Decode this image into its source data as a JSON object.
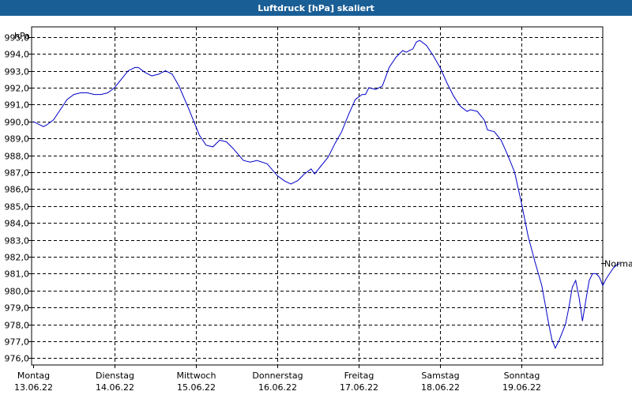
{
  "window": {
    "title": "Luftdruck [hPa] skaliert"
  },
  "colors": {
    "titlebar": "#1a5e96",
    "series": "#0000c8",
    "grid": "#000000"
  },
  "chart_data": {
    "type": "line",
    "title": "Luftdruck [hPa] skaliert",
    "ylabel": "hPa",
    "ylim": [
      975.6,
      995.6
    ],
    "yticks": [
      976,
      977,
      978,
      979,
      980,
      981,
      982,
      983,
      984,
      985,
      986,
      987,
      988,
      989,
      990,
      991,
      992,
      993,
      994,
      995
    ],
    "ytick_labels": [
      "976,0",
      "977,0",
      "978,0",
      "979,0",
      "980,0",
      "981,0",
      "982,0",
      "983,0",
      "984,0",
      "985,0",
      "986,0",
      "987,0",
      "988,0",
      "989,0",
      "990,0",
      "991,0",
      "992,0",
      "993,0",
      "994,0",
      "995,0"
    ],
    "x_axis": {
      "start": "13.06.22 00:00",
      "days": 7,
      "day_labels": [
        {
          "weekday": "Montag",
          "date": "13.06.22"
        },
        {
          "weekday": "Dienstag",
          "date": "14.06.22"
        },
        {
          "weekday": "Mittwoch",
          "date": "15.06.22"
        },
        {
          "weekday": "Donnerstag",
          "date": "16.06.22"
        },
        {
          "weekday": "Freitag",
          "date": "17.06.22"
        },
        {
          "weekday": "Samstag",
          "date": "18.06.22"
        },
        {
          "weekday": "Sonntag",
          "date": "19.06.22"
        }
      ]
    },
    "grid": true,
    "series": [
      {
        "marker_label": "Normal",
        "points": [
          [
            "13.06.22 00:00",
            990.0
          ],
          [
            "13.06.22 02:00",
            989.8
          ],
          [
            "13.06.22 03:00",
            989.7
          ],
          [
            "13.06.22 04:00",
            989.8
          ],
          [
            "13.06.22 06:00",
            990.1
          ],
          [
            "13.06.22 08:00",
            990.7
          ],
          [
            "13.06.22 10:00",
            991.3
          ],
          [
            "13.06.22 12:00",
            991.6
          ],
          [
            "13.06.22 14:00",
            991.7
          ],
          [
            "13.06.22 16:00",
            991.7
          ],
          [
            "13.06.22 18:00",
            991.6
          ],
          [
            "13.06.22 20:00",
            991.6
          ],
          [
            "13.06.22 22:00",
            991.7
          ],
          [
            "14.06.22 00:00",
            992.0
          ],
          [
            "14.06.22 02:00",
            992.5
          ],
          [
            "14.06.22 04:00",
            993.0
          ],
          [
            "14.06.22 06:00",
            993.2
          ],
          [
            "14.06.22 07:00",
            993.2
          ],
          [
            "14.06.22 09:00",
            992.9
          ],
          [
            "14.06.22 11:00",
            992.7
          ],
          [
            "14.06.22 13:00",
            992.8
          ],
          [
            "14.06.22 15:00",
            993.0
          ],
          [
            "14.06.22 17:00",
            992.8
          ],
          [
            "14.06.22 19:00",
            992.1
          ],
          [
            "14.06.22 22:00",
            990.7
          ],
          [
            "15.06.22 01:00",
            989.2
          ],
          [
            "15.06.22 03:00",
            988.6
          ],
          [
            "15.06.22 05:00",
            988.5
          ],
          [
            "15.06.22 07:00",
            988.9
          ],
          [
            "15.06.22 09:00",
            988.8
          ],
          [
            "15.06.22 11:00",
            988.4
          ],
          [
            "15.06.22 14:00",
            987.7
          ],
          [
            "15.06.22 16:00",
            987.6
          ],
          [
            "15.06.22 18:00",
            987.7
          ],
          [
            "15.06.22 21:00",
            987.5
          ],
          [
            "16.06.22 00:00",
            986.8
          ],
          [
            "16.06.22 02:00",
            986.5
          ],
          [
            "16.06.22 04:00",
            986.3
          ],
          [
            "16.06.22 06:00",
            986.5
          ],
          [
            "16.06.22 08:00",
            986.9
          ],
          [
            "16.06.22 10:00",
            987.2
          ],
          [
            "16.06.22 11:00",
            986.9
          ],
          [
            "16.06.22 13:00",
            987.4
          ],
          [
            "16.06.22 15:00",
            987.9
          ],
          [
            "16.06.22 17:00",
            988.7
          ],
          [
            "16.06.22 19:00",
            989.4
          ],
          [
            "16.06.22 21:00",
            990.4
          ],
          [
            "16.06.22 23:00",
            991.3
          ],
          [
            "17.06.22 01:00",
            991.6
          ],
          [
            "17.06.22 02:00",
            991.6
          ],
          [
            "17.06.22 03:00",
            992.0
          ],
          [
            "17.06.22 05:00",
            991.9
          ],
          [
            "17.06.22 07:00",
            992.1
          ],
          [
            "17.06.22 09:00",
            993.2
          ],
          [
            "17.06.22 11:00",
            993.8
          ],
          [
            "17.06.22 13:00",
            994.2
          ],
          [
            "17.06.22 14:00",
            994.1
          ],
          [
            "17.06.22 16:00",
            994.3
          ],
          [
            "17.06.22 17:00",
            994.7
          ],
          [
            "17.06.22 18:00",
            994.8
          ],
          [
            "17.06.22 20:00",
            994.5
          ],
          [
            "17.06.22 22:00",
            993.9
          ],
          [
            "18.06.22 00:00",
            993.2
          ],
          [
            "18.06.22 02:00",
            992.3
          ],
          [
            "18.06.22 04:00",
            991.5
          ],
          [
            "18.06.22 06:00",
            990.9
          ],
          [
            "18.06.22 08:00",
            990.6
          ],
          [
            "18.06.22 09:00",
            990.7
          ],
          [
            "18.06.22 11:00",
            990.6
          ],
          [
            "18.06.22 13:00",
            990.1
          ],
          [
            "18.06.22 14:00",
            989.5
          ],
          [
            "18.06.22 16:00",
            989.4
          ],
          [
            "18.06.22 18:00",
            988.9
          ],
          [
            "18.06.22 20:00",
            988.0
          ],
          [
            "18.06.22 22:00",
            987.0
          ],
          [
            "19.06.22 00:00",
            985.2
          ],
          [
            "19.06.22 02:00",
            983.2
          ],
          [
            "19.06.22 04:00",
            981.7
          ],
          [
            "19.06.22 06:00",
            980.3
          ],
          [
            "19.06.22 08:00",
            978.1
          ],
          [
            "19.06.22 09:00",
            977.1
          ],
          [
            "19.06.22 10:00",
            976.6
          ],
          [
            "19.06.22 11:00",
            977.0
          ],
          [
            "19.06.22 13:00",
            978.0
          ],
          [
            "19.06.22 14:00",
            979.0
          ],
          [
            "19.06.22 15:00",
            980.2
          ],
          [
            "19.06.22 16:00",
            980.6
          ],
          [
            "19.06.22 17:00",
            979.6
          ],
          [
            "19.06.22 18:00",
            978.2
          ],
          [
            "19.06.22 19:00",
            979.4
          ],
          [
            "19.06.22 20:00",
            980.6
          ],
          [
            "19.06.22 21:00",
            981.0
          ],
          [
            "19.06.22 22:00",
            981.0
          ],
          [
            "19.06.22 23:00",
            980.8
          ],
          [
            "20.06.22 00:00",
            980.3
          ],
          [
            "20.06.22 01:00",
            980.7
          ],
          [
            "20.06.22 02:00",
            981.0
          ],
          [
            "20.06.22 03:00",
            981.3
          ],
          [
            "20.06.22 04:00",
            981.5
          ],
          [
            "20.06.22 05:00",
            981.6
          ]
        ]
      }
    ]
  }
}
